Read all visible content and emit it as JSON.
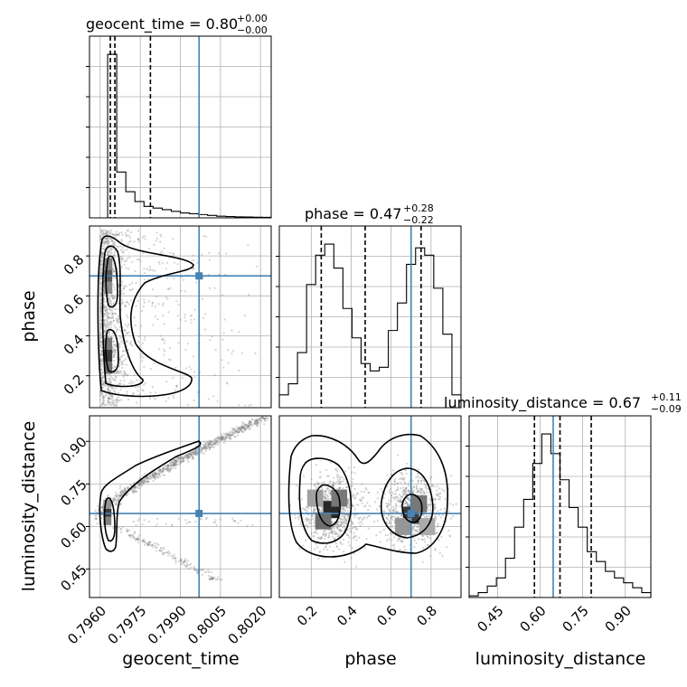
{
  "chart_data": {
    "type": "corner",
    "parameters": [
      {
        "name": "geocent_time",
        "label": "geocent_time",
        "range": [
          0.7956,
          0.8024
        ],
        "truth": 0.7997,
        "ticks": [
          0.796,
          0.7975,
          0.799,
          0.8005,
          0.802
        ],
        "tick_labels": [
          "0.7960",
          "0.7975",
          "0.7990",
          "0.8005",
          "0.8020"
        ],
        "quantiles": [
          0.79638,
          0.79655,
          0.79788
        ],
        "title_value": "0.80",
        "title_plus": "+0.00",
        "title_minus": "−0.00",
        "hist_counts": [
          0.0,
          0.0,
          1.0,
          0.28,
          0.16,
          0.1,
          0.07,
          0.06,
          0.05,
          0.04,
          0.03,
          0.025,
          0.02,
          0.015,
          0.01,
          0.008,
          0.006,
          0.005,
          0.004,
          0.003
        ]
      },
      {
        "name": "phase",
        "label": "phase",
        "range": [
          0.04,
          0.95
        ],
        "truth": 0.7,
        "ticks": [
          0.2,
          0.4,
          0.6,
          0.8
        ],
        "tick_labels": [
          "0.2",
          "0.4",
          "0.6",
          "0.8"
        ],
        "quantiles": [
          0.25,
          0.47,
          0.75
        ],
        "title_value": "0.47",
        "title_plus": "+0.28",
        "title_minus": "−0.22",
        "hist_counts": [
          0.07,
          0.13,
          0.3,
          0.67,
          0.83,
          0.89,
          0.76,
          0.54,
          0.38,
          0.24,
          0.2,
          0.22,
          0.42,
          0.57,
          0.78,
          0.87,
          0.83,
          0.65,
          0.4,
          0.07
        ]
      },
      {
        "name": "luminosity_distance",
        "label": "luminosity_distance",
        "range": [
          0.35,
          0.99
        ],
        "truth": 0.646,
        "ticks": [
          0.45,
          0.6,
          0.75,
          0.9
        ],
        "tick_labels": [
          "0.45",
          "0.60",
          "0.75",
          "0.90"
        ],
        "quantiles": [
          0.58,
          0.67,
          0.78
        ],
        "title_value": "0.67",
        "title_plus": "+0.11",
        "title_minus": "−0.09",
        "hist_counts": [
          0.01,
          0.03,
          0.07,
          0.12,
          0.24,
          0.43,
          0.6,
          0.82,
          1.0,
          0.88,
          0.72,
          0.55,
          0.43,
          0.28,
          0.22,
          0.16,
          0.12,
          0.09,
          0.06,
          0.03
        ]
      }
    ],
    "grid": true,
    "colors": {
      "truth": "#4682b4",
      "samples": "#808080",
      "contour": "#000000"
    }
  }
}
